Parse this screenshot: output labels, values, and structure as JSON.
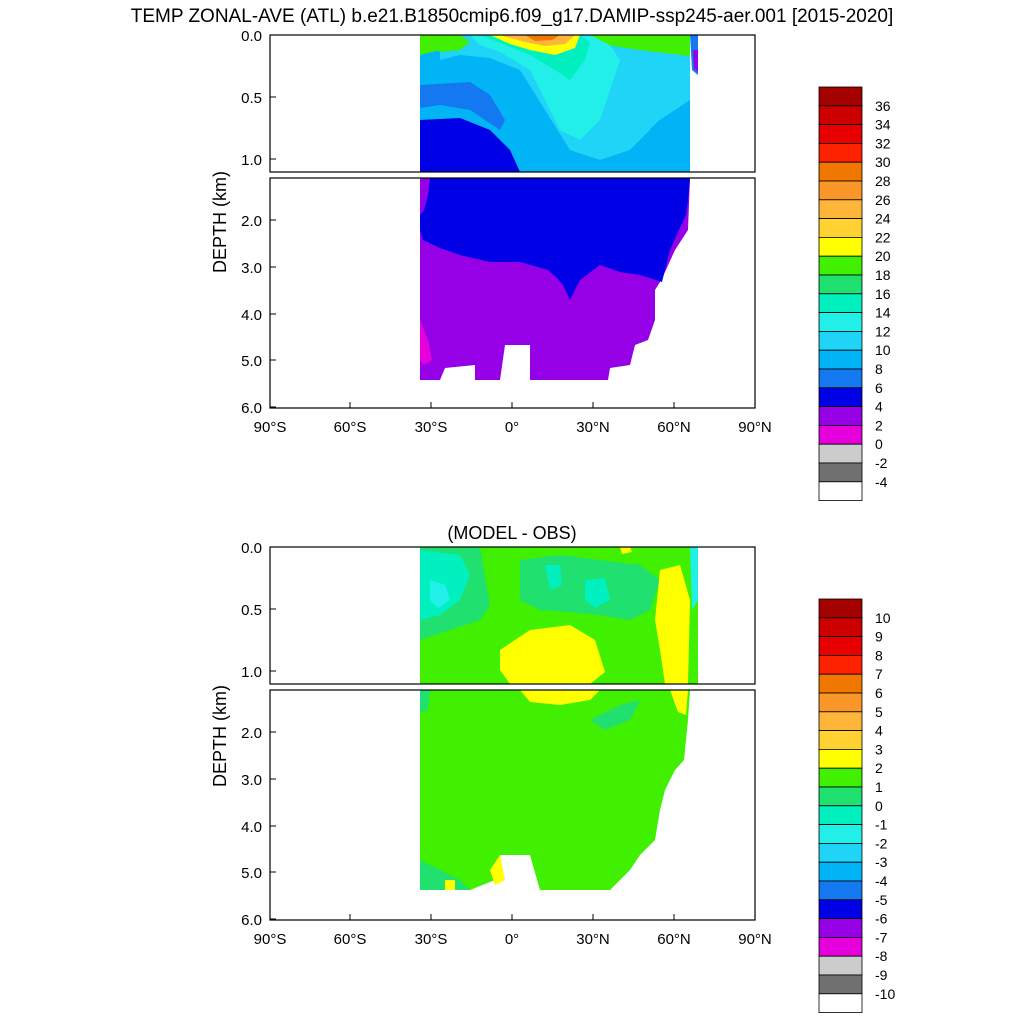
{
  "title": "TEMP ZONAL-AVE (ATL) b.e21.B1850cmip6.f09_g17.DAMIP-ssp245-aer.001 [2015-2020]",
  "chart_data": [
    {
      "type": "heatmap",
      "name": "",
      "panel_title": "",
      "ylabel": "DEPTH (km)",
      "x_ticks": [
        "90°S",
        "60°S",
        "30°S",
        "0°",
        "30°N",
        "60°N",
        "90°N"
      ],
      "x_tick_values": [
        -90,
        -60,
        -30,
        0,
        30,
        60,
        90
      ],
      "xlim": [
        -90,
        90
      ],
      "upper_section": {
        "ylim": [
          0,
          1.15
        ],
        "ticks": [
          "0.0",
          "0.5",
          "1.0"
        ],
        "tick_values": [
          0,
          0.5,
          1.0
        ]
      },
      "lower_section": {
        "ylim": [
          1.15,
          6.0
        ],
        "ticks": [
          "2.0",
          "3.0",
          "4.0",
          "5.0",
          "6.0"
        ],
        "tick_values": [
          2,
          3,
          4,
          5,
          6
        ]
      },
      "ocean_extent_lat": [
        -34,
        66
      ],
      "bottom_depth_km": 5.4,
      "colorbar": {
        "labels": [
          "36",
          "34",
          "32",
          "30",
          "28",
          "26",
          "24",
          "22",
          "20",
          "18",
          "16",
          "14",
          "12",
          "10",
          "8",
          "6",
          "4",
          "2",
          "0",
          "-2",
          "-4"
        ],
        "colors": [
          "#a50000",
          "#cc0000",
          "#e60000",
          "#ff2200",
          "#f07800",
          "#fa9628",
          "#ffb43c",
          "#ffd232",
          "#ffff00",
          "#40f000",
          "#20e070",
          "#00f0c0",
          "#22f0e8",
          "#20d4f8",
          "#00b4f5",
          "#1478f0",
          "#0000e6",
          "#9600e6",
          "#e600dc",
          "#cccccc",
          "#707070",
          "#ffffff"
        ]
      }
    },
    {
      "type": "heatmap",
      "name": "",
      "panel_title": "(MODEL - OBS)",
      "ylabel": "DEPTH (km)",
      "x_ticks": [
        "90°S",
        "60°S",
        "30°S",
        "0°",
        "30°N",
        "60°N",
        "90°N"
      ],
      "x_tick_values": [
        -90,
        -60,
        -30,
        0,
        30,
        60,
        90
      ],
      "xlim": [
        -90,
        90
      ],
      "upper_section": {
        "ylim": [
          0,
          1.15
        ],
        "ticks": [
          "0.0",
          "0.5",
          "1.0"
        ],
        "tick_values": [
          0,
          0.5,
          1.0
        ]
      },
      "lower_section": {
        "ylim": [
          1.15,
          6.0
        ],
        "ticks": [
          "2.0",
          "3.0",
          "4.0",
          "5.0",
          "6.0"
        ],
        "tick_values": [
          2,
          3,
          4,
          5,
          6
        ]
      },
      "ocean_extent_lat": [
        -34,
        66
      ],
      "bottom_depth_km": 5.4,
      "colorbar": {
        "labels": [
          "10",
          "9",
          "8",
          "7",
          "6",
          "5",
          "4",
          "3",
          "2",
          "1",
          "0",
          "-1",
          "-2",
          "-3",
          "-4",
          "-5",
          "-6",
          "-7",
          "-8",
          "-9",
          "-10"
        ],
        "colors": [
          "#a50000",
          "#cc0000",
          "#e60000",
          "#ff2200",
          "#f07800",
          "#fa9628",
          "#ffb43c",
          "#ffd232",
          "#ffff00",
          "#40f000",
          "#20e070",
          "#00f0c0",
          "#22f0e8",
          "#20d4f8",
          "#00b4f5",
          "#1478f0",
          "#0000e6",
          "#9600e6",
          "#e600dc",
          "#cccccc",
          "#707070",
          "#ffffff"
        ]
      }
    }
  ]
}
